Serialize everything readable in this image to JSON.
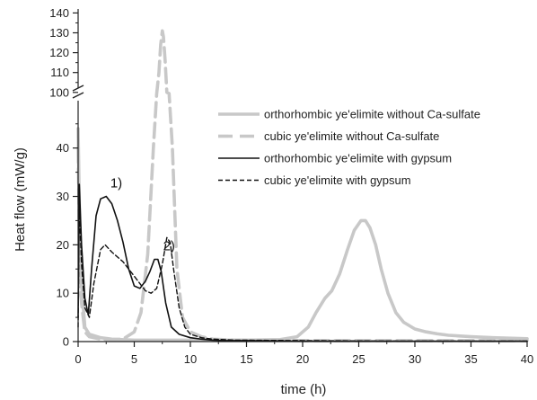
{
  "chart_data": {
    "type": "line",
    "xlabel": "time (h)",
    "ylabel": "Heat flow (mW/g)",
    "xlim": [
      0,
      40
    ],
    "x_ticks": [
      0,
      5,
      10,
      15,
      20,
      25,
      30,
      35,
      40
    ],
    "y_lower_range": [
      0,
      47
    ],
    "y_lower_ticks": [
      0,
      10,
      20,
      30,
      40
    ],
    "y_upper_range": [
      99,
      142
    ],
    "y_upper_ticks": [
      100,
      110,
      120,
      130,
      140
    ],
    "axis_break": "left y-axis broken between 47 and 99",
    "grid": false,
    "legend_placement": "right",
    "annotations": [
      {
        "text": "1)",
        "x": 2.6,
        "y": 31.5
      },
      {
        "text": "2)",
        "x": 7.3,
        "y": 18.5
      }
    ],
    "series": [
      {
        "name": "orthorhombic ye'elimite without Ca-sulfate",
        "color": "#c8c8c8",
        "style": "solid-thick",
        "x": [
          0,
          0.2,
          0.6,
          1,
          2,
          3,
          5,
          8,
          10,
          12,
          15,
          18,
          19.5,
          20.5,
          21.2,
          22,
          22.6,
          23.3,
          24,
          24.6,
          25.2,
          25.6,
          26,
          26.5,
          27,
          27.6,
          28.3,
          29,
          30,
          31,
          32,
          33,
          35,
          37,
          40
        ],
        "y": [
          44,
          15,
          3,
          1.5,
          0.8,
          0.5,
          0.3,
          0.3,
          0.3,
          0.3,
          0.3,
          0.4,
          1,
          3,
          6,
          9,
          10.5,
          14,
          19,
          23,
          25,
          25,
          23.5,
          20,
          15,
          10,
          6,
          4,
          2.6,
          2,
          1.6,
          1.3,
          1,
          0.8,
          0.6
        ]
      },
      {
        "name": "cubic ye'elimite without Ca-sulfate",
        "color": "#c8c8c8",
        "style": "dashed-thick",
        "x": [
          0,
          0.2,
          0.6,
          1,
          2,
          3,
          4,
          5,
          5.6,
          6.2,
          6.7,
          7,
          7.2,
          7.35,
          7.5,
          7.6,
          7.75,
          7.9,
          8.1,
          8.4,
          8.8,
          9.3,
          10,
          11,
          12,
          14,
          16,
          20,
          25,
          30,
          35,
          40
        ],
        "y": [
          40,
          10,
          2,
          1,
          0.5,
          0.4,
          0.5,
          2,
          6,
          18,
          40,
          80,
          110,
          124,
          131,
          128,
          116,
          100,
          72,
          40,
          15,
          5,
          2,
          1,
          0.5,
          0.3,
          0.3,
          0.2,
          0.2,
          0.2,
          0.2,
          0.2
        ]
      },
      {
        "name": "orthorhombic ye'elimite with gypsum",
        "color": "#111111",
        "style": "solid",
        "x": [
          0,
          0.1,
          0.3,
          0.6,
          0.9,
          1.2,
          1.6,
          2,
          2.5,
          3,
          3.5,
          4,
          4.5,
          5,
          5.5,
          6,
          6.4,
          6.8,
          7.1,
          7.4,
          7.8,
          8.3,
          9,
          10,
          11,
          12,
          13,
          15,
          20,
          30,
          40
        ],
        "y": [
          5,
          32.5,
          20,
          9,
          5.5,
          15,
          26,
          29.5,
          30,
          28.5,
          25,
          20.5,
          15,
          11.5,
          11,
          12.5,
          14.5,
          17,
          17,
          14.5,
          8,
          3,
          1.5,
          0.8,
          0.5,
          0.3,
          0.2,
          0.2,
          0.1,
          0.1,
          0.1
        ]
      },
      {
        "name": "cubic ye'elimite with gypsum",
        "color": "#111111",
        "style": "dashed",
        "x": [
          0,
          0.1,
          0.3,
          0.6,
          1,
          1.4,
          2,
          2.4,
          3,
          4,
          5,
          6,
          6.5,
          7,
          7.5,
          7.9,
          8.2,
          8.5,
          9,
          9.5,
          10,
          11,
          12,
          14,
          20,
          30,
          40
        ],
        "y": [
          3,
          28,
          16,
          7,
          5,
          12,
          19,
          20,
          18.5,
          16.5,
          13.5,
          10.5,
          10,
          11,
          16,
          21.5,
          20.5,
          15,
          7,
          3,
          1.5,
          0.8,
          0.5,
          0.3,
          0.2,
          0.1,
          0.1
        ]
      }
    ]
  }
}
